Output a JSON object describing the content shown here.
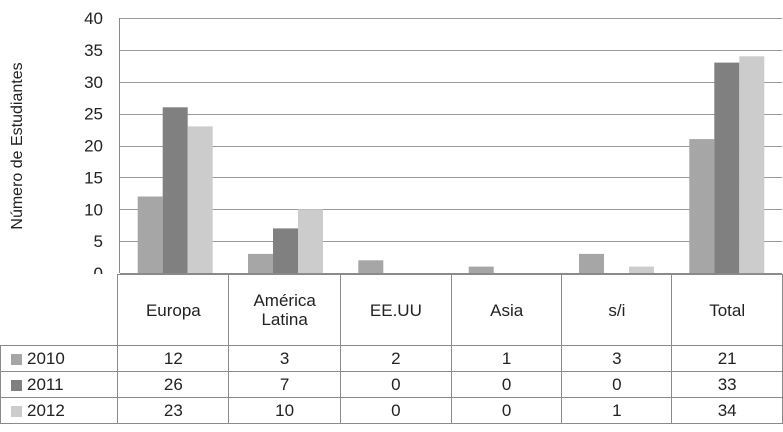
{
  "chart_data": {
    "type": "bar",
    "title": "",
    "xlabel": "",
    "ylabel": "Número de Estudiantes",
    "ylim": [
      0,
      40
    ],
    "yticks": [
      0,
      5,
      10,
      15,
      20,
      25,
      30,
      35,
      40
    ],
    "grid": true,
    "legend": "data-table",
    "categories": [
      "Europa",
      "América\nLatina",
      "EE.UU",
      "Asia",
      "s/i",
      "Total"
    ],
    "series": [
      {
        "name": "2010",
        "color": "#a6a6a6",
        "values": [
          12,
          3,
          2,
          1,
          3,
          21
        ]
      },
      {
        "name": "2011",
        "color": "#808080",
        "values": [
          26,
          7,
          0,
          0,
          0,
          33
        ]
      },
      {
        "name": "2012",
        "color": "#cccccc",
        "values": [
          23,
          10,
          0,
          0,
          1,
          34
        ]
      }
    ]
  }
}
